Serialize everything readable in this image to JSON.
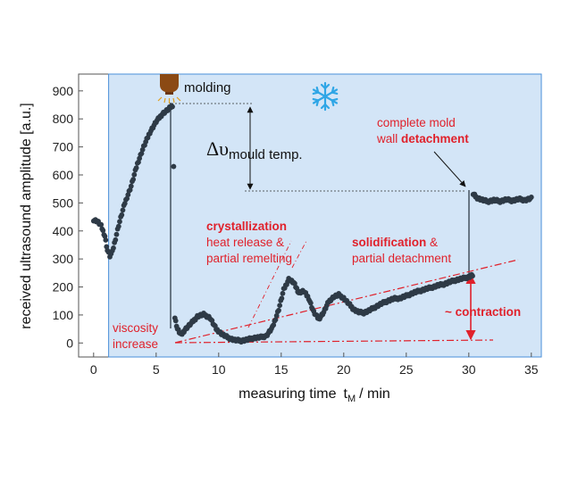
{
  "chart_data": {
    "type": "scatter",
    "xlabel": "measuring time",
    "xlabel_symbol": "t",
    "xlabel_sub": "M",
    "xlabel_unit": "/ min",
    "ylabel": "received ultrasound amplitude  [a.u.]",
    "xlim": [
      -1.2,
      35.8
    ],
    "ylim": [
      -50,
      960
    ],
    "xticks": [
      0,
      5,
      10,
      15,
      20,
      25,
      30,
      35
    ],
    "yticks": [
      0,
      100,
      200,
      300,
      400,
      500,
      600,
      700,
      800,
      900
    ],
    "shaded_region": {
      "x_start": 1.2,
      "x_end": 35.8,
      "color": "#d3e5f7"
    },
    "series_color": "#2e3a46",
    "keypoints": [
      [
        0.0,
        440
      ],
      [
        0.3,
        435
      ],
      [
        0.6,
        418
      ],
      [
        0.9,
        382
      ],
      [
        1.1,
        330
      ],
      [
        1.3,
        310
      ],
      [
        1.5,
        325
      ],
      [
        2.0,
        420
      ],
      [
        2.5,
        500
      ],
      [
        3.0,
        560
      ],
      [
        3.5,
        640
      ],
      [
        4.0,
        700
      ],
      [
        4.5,
        752
      ],
      [
        5.0,
        790
      ],
      [
        5.5,
        818
      ],
      [
        6.0,
        835
      ],
      [
        6.3,
        848
      ],
      [
        6.5,
        90
      ],
      [
        6.7,
        50
      ],
      [
        7.0,
        28
      ],
      [
        7.3,
        48
      ],
      [
        7.8,
        70
      ],
      [
        8.3,
        95
      ],
      [
        8.8,
        102
      ],
      [
        9.3,
        90
      ],
      [
        9.8,
        50
      ],
      [
        10.3,
        30
      ],
      [
        10.8,
        18
      ],
      [
        11.3,
        10
      ],
      [
        11.8,
        8
      ],
      [
        12.3,
        12
      ],
      [
        12.8,
        18
      ],
      [
        13.3,
        20
      ],
      [
        13.8,
        25
      ],
      [
        14.3,
        55
      ],
      [
        14.8,
        120
      ],
      [
        15.2,
        190
      ],
      [
        15.6,
        228
      ],
      [
        16.0,
        215
      ],
      [
        16.4,
        180
      ],
      [
        16.8,
        185
      ],
      [
        17.2,
        160
      ],
      [
        17.6,
        110
      ],
      [
        18.0,
        85
      ],
      [
        18.4,
        110
      ],
      [
        18.8,
        148
      ],
      [
        19.2,
        165
      ],
      [
        19.6,
        172
      ],
      [
        20.0,
        160
      ],
      [
        20.4,
        140
      ],
      [
        20.8,
        120
      ],
      [
        21.2,
        110
      ],
      [
        21.6,
        108
      ],
      [
        22.0,
        115
      ],
      [
        22.5,
        128
      ],
      [
        23.0,
        140
      ],
      [
        23.5,
        150
      ],
      [
        24.0,
        158
      ],
      [
        24.5,
        160
      ],
      [
        25.0,
        168
      ],
      [
        25.5,
        178
      ],
      [
        26.0,
        185
      ],
      [
        26.5,
        192
      ],
      [
        27.0,
        198
      ],
      [
        27.5,
        205
      ],
      [
        28.0,
        210
      ],
      [
        28.5,
        218
      ],
      [
        29.0,
        225
      ],
      [
        29.5,
        230
      ],
      [
        30.0,
        236
      ],
      [
        30.3,
        242
      ],
      [
        30.4,
        530
      ],
      [
        30.6,
        520
      ],
      [
        31.0,
        512
      ],
      [
        31.5,
        505
      ],
      [
        32.0,
        510
      ],
      [
        32.5,
        506
      ],
      [
        33.0,
        512
      ],
      [
        33.5,
        508
      ],
      [
        34.0,
        514
      ],
      [
        34.5,
        510
      ],
      [
        35.0,
        516
      ]
    ],
    "annotations": {
      "molding": "molding",
      "delta": "Δυ",
      "delta_sub": "mould temp.",
      "mold_detach_1": "complete mold",
      "mold_detach_2a": "wall ",
      "mold_detach_2b": "detachment",
      "cryst_1": "crystallization",
      "cryst_2": "heat release &",
      "cryst_3": "partial remelting",
      "solid_1a": "solidification",
      "solid_1b": " & ",
      "solid_2": "partial detachment",
      "contraction": "~ contraction",
      "visc_1": "viscosity",
      "visc_2": "increase"
    },
    "snowflake_icon": "snowflake-icon",
    "nozzle_icon": "injection-nozzle-icon",
    "colors": {
      "red": "#e0212b",
      "blue_region": "#d3e5f7",
      "snowflake": "#2fa6e6",
      "nozzle": "#8b4a14"
    }
  }
}
